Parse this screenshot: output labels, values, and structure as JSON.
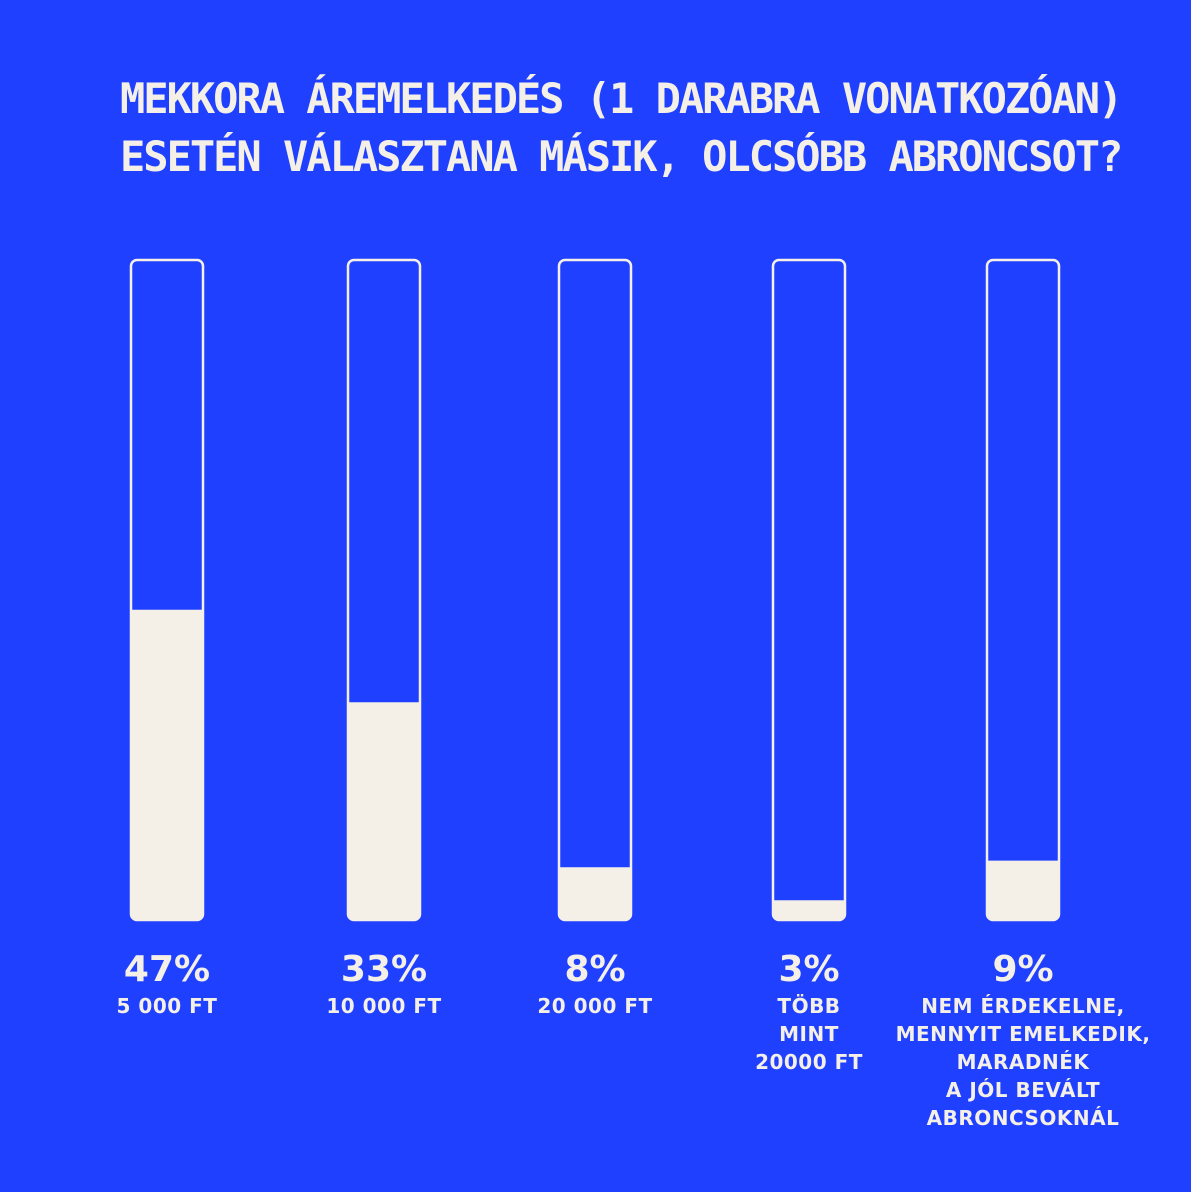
{
  "title_lines": [
    "MEKKORA ÁREMELKEDÉS (1 DARABRA VONATKOZÓAN)",
    "ESETÉN VÁLASZTANA MÁSIK, OLCSÓBB ABRONCSOT?"
  ],
  "colors": {
    "background": "#1f40ff",
    "foreground": "#f4f0e8"
  },
  "chart_data": {
    "type": "bar",
    "title": "MEKKORA ÁREMELKEDÉS (1 DARABRA VONATKOZÓAN) ESETÉN VÁLASZTANA MÁSIK, OLCSÓBB ABRONCSOT?",
    "ylim": [
      0,
      100
    ],
    "unit": "%",
    "categories": [
      "5 000 FT",
      "10 000 FT",
      "20 000 FT",
      "TÖBB MINT 20000 FT",
      "NEM ÉRDEKELNE, MENNYIT EMELKEDIK, MARADNÉK A JÓL BEVÁLT ABRONCSOKNÁL"
    ],
    "values": [
      47,
      33,
      8,
      3,
      9
    ],
    "value_labels": [
      "47%",
      "33%",
      "8%",
      "3%",
      "9%"
    ],
    "label_lines": [
      [
        "5 000 FT"
      ],
      [
        "10 000 FT"
      ],
      [
        "20 000 FT"
      ],
      [
        "TÖBB",
        "MINT",
        "20000 FT"
      ],
      [
        "NEM ÉRDEKELNE,",
        "MENNYIT EMELKEDIK,",
        "MARADNÉK",
        "A JÓL BEVÁLT",
        "ABRONCSOKNÁL"
      ]
    ],
    "grid": false,
    "legend": "none"
  }
}
